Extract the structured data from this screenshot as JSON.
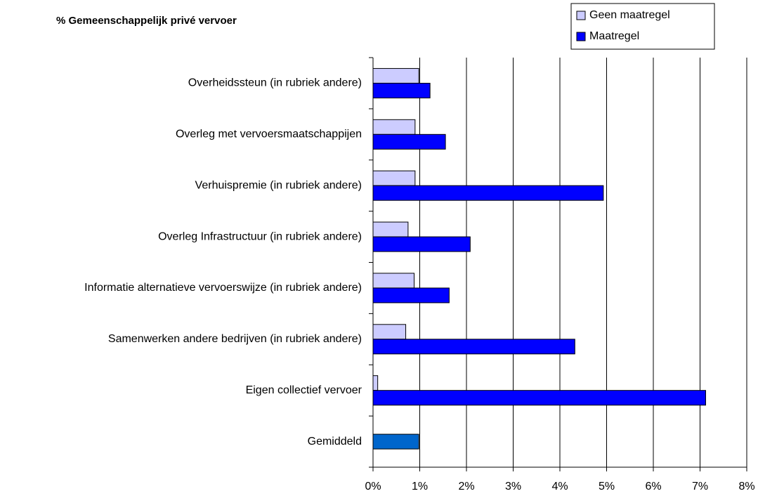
{
  "chart_data": {
    "type": "hbar",
    "title": "% Gemeenschappelijk privé vervoer",
    "categories": [
      "Overheidssteun (in rubriek andere)",
      "Overleg met vervoersmaatschappijen",
      "Verhuispremie (in rubriek andere)",
      "Overleg Infrastructuur (in rubriek andere)",
      "Informatie alternatieve vervoerswijze (in rubriek andere)",
      "Samenwerken andere bedrijven (in rubriek andere)",
      "Eigen collectief vervoer",
      "Gemiddeld"
    ],
    "series": [
      {
        "name": "Geen maatregel",
        "color": "#ccccff",
        "values": [
          0.98,
          0.9,
          0.9,
          0.75,
          0.88,
          0.7,
          0.1,
          null
        ]
      },
      {
        "name": "Maatregel",
        "color": "#0000ff",
        "values": [
          1.22,
          1.55,
          4.93,
          2.08,
          1.63,
          4.32,
          7.12,
          null
        ]
      }
    ],
    "average_value": 0.98,
    "average_color": "#0066cc",
    "xlim": [
      0,
      8
    ],
    "xticks": [
      {
        "value": 0,
        "label": "0%"
      },
      {
        "value": 1,
        "label": "1%"
      },
      {
        "value": 2,
        "label": "2%"
      },
      {
        "value": 3,
        "label": "3%"
      },
      {
        "value": 4,
        "label": "4%"
      },
      {
        "value": 5,
        "label": "5%"
      },
      {
        "value": 6,
        "label": "6%"
      },
      {
        "value": 7,
        "label": "7%"
      },
      {
        "value": 8,
        "label": "8%"
      }
    ],
    "grid": true,
    "legend": "top-right"
  }
}
